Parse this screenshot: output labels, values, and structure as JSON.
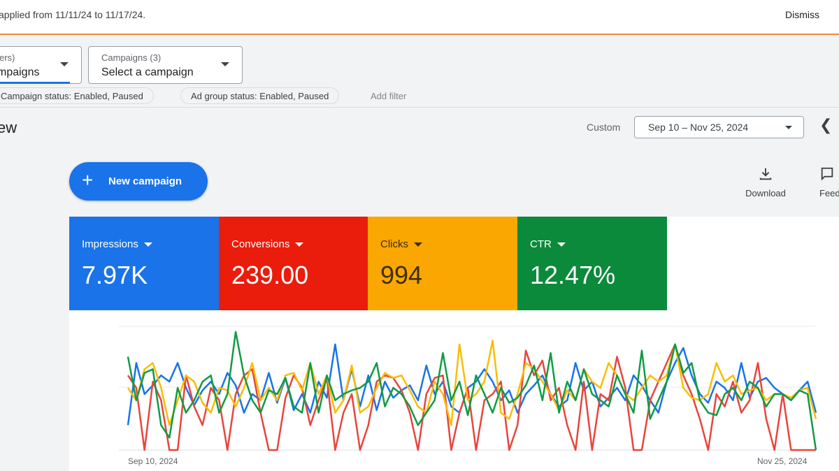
{
  "banner": {
    "text": "applied from 11/11/24 to 11/17/24.",
    "dismiss_label": "Dismiss"
  },
  "selectors": {
    "first": {
      "label": "ers)",
      "value": "mpaigns"
    },
    "campaigns": {
      "label": "Campaigns (3)",
      "value": "Select a campaign"
    }
  },
  "filters": {
    "chips": [
      "Campaign status: Enabled, Paused",
      "Ad group status: Enabled, Paused"
    ],
    "add_filter_label": "Add filter"
  },
  "page": {
    "title": "ew",
    "custom_label": "Custom",
    "date_range": "Sep 10 – Nov 25, 2024"
  },
  "actions": {
    "new_campaign_label": "New campaign",
    "download_label": "Download",
    "feedback_label": "Feed"
  },
  "metrics": [
    {
      "name": "Impressions",
      "value": "7.97K",
      "color": "#1a73e8",
      "text_color": "#ffffff"
    },
    {
      "name": "Conversions",
      "value": "239.00",
      "color": "#ea1c0c",
      "text_color": "#ffffff"
    },
    {
      "name": "Clicks",
      "value": "994",
      "color": "#fba702",
      "text_color": "#3c2f00"
    },
    {
      "name": "CTR",
      "value": "12.47%",
      "color": "#0b8a3b",
      "text_color": "#ffffff"
    }
  ],
  "chart_data": {
    "type": "line",
    "x_start_label": "Sep 10, 2024",
    "x_end_label": "Nov 25, 2024",
    "series": [
      {
        "name": "Impressions",
        "color": "#1a73e8",
        "values": [
          20,
          70,
          45,
          52,
          60,
          55,
          70,
          50,
          36,
          48,
          55,
          45,
          62,
          52,
          30,
          45,
          40,
          62,
          38,
          58,
          32,
          45,
          30,
          55,
          42,
          85,
          40,
          65,
          35,
          60,
          32,
          55,
          42,
          48,
          52,
          40,
          68,
          45,
          55,
          35,
          30,
          50,
          55,
          65,
          55,
          40,
          48,
          30,
          45,
          52,
          60,
          45,
          35,
          40,
          70,
          48,
          55,
          35,
          42,
          50,
          40,
          60,
          52,
          40,
          30,
          55,
          70,
          82,
          60,
          45,
          38,
          55,
          50,
          40,
          70,
          42,
          55,
          58,
          50,
          45,
          40,
          48,
          55,
          30
        ]
      },
      {
        "name": "Conversions",
        "color": "#e8453c",
        "values": [
          60,
          50,
          0,
          55,
          40,
          0,
          0,
          60,
          35,
          20,
          50,
          40,
          0,
          45,
          60,
          65,
          30,
          0,
          0,
          42,
          60,
          50,
          20,
          40,
          58,
          0,
          30,
          45,
          0,
          20,
          55,
          60,
          58,
          48,
          30,
          0,
          45,
          58,
          60,
          0,
          30,
          50,
          0,
          40,
          45,
          55,
          0,
          20,
          80,
          60,
          72,
          40,
          50,
          20,
          0,
          55,
          0,
          45,
          40,
          75,
          50,
          0,
          0,
          40,
          55,
          70,
          85,
          60,
          45,
          25,
          0,
          45,
          35,
          55,
          30,
          40,
          70,
          25,
          0,
          45,
          0,
          0,
          0,
          0
        ]
      },
      {
        "name": "Clicks",
        "color": "#fbbc04",
        "values": [
          50,
          40,
          65,
          70,
          50,
          20,
          40,
          60,
          55,
          38,
          30,
          50,
          48,
          35,
          50,
          70,
          40,
          50,
          40,
          60,
          62,
          48,
          70,
          45,
          60,
          30,
          40,
          68,
          30,
          35,
          50,
          62,
          58,
          60,
          48,
          35,
          30,
          55,
          45,
          20,
          85,
          40,
          45,
          55,
          88,
          30,
          25,
          45,
          70,
          65,
          55,
          45,
          32,
          48,
          40,
          65,
          55,
          50,
          70,
          60,
          45,
          40,
          50,
          60,
          55,
          60,
          85,
          50,
          42,
          40,
          45,
          70,
          55,
          60,
          45,
          48,
          50,
          40,
          45,
          45,
          42,
          48,
          50,
          25
        ]
      },
      {
        "name": "CTR",
        "color": "#109b45",
        "values": [
          75,
          40,
          62,
          65,
          20,
          10,
          50,
          30,
          40,
          55,
          60,
          30,
          45,
          95,
          60,
          40,
          30,
          48,
          45,
          58,
          35,
          30,
          70,
          30,
          60,
          40,
          45,
          48,
          50,
          55,
          70,
          35,
          50,
          45,
          35,
          20,
          30,
          40,
          78,
          40,
          55,
          28,
          60,
          45,
          30,
          50,
          38,
          42,
          52,
          68,
          40,
          78,
          30,
          55,
          40,
          65,
          45,
          40,
          35,
          60,
          45,
          30,
          80,
          25,
          40,
          55,
          85,
          62,
          70,
          40,
          30,
          28,
          45,
          50,
          40,
          55,
          50,
          35,
          45,
          45,
          40,
          48,
          45,
          0
        ]
      }
    ]
  }
}
